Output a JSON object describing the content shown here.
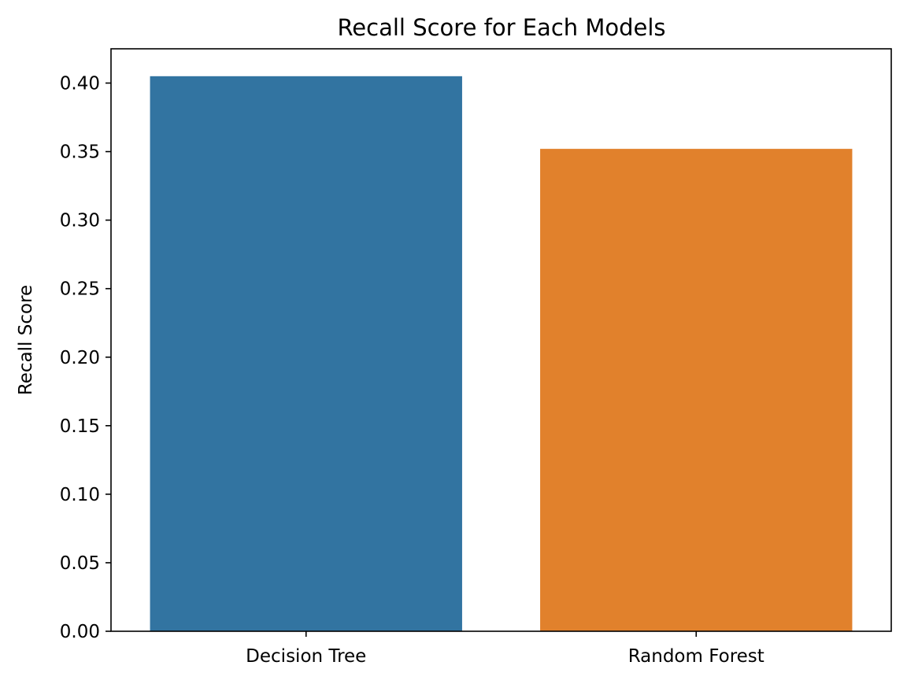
{
  "chart_data": {
    "type": "bar",
    "title": "Recall Score for Each Models",
    "xlabel": "",
    "ylabel": "Recall Score",
    "categories": [
      "Decision Tree",
      "Random Forest"
    ],
    "values": [
      0.405,
      0.352
    ],
    "colors": [
      "#3274a1",
      "#e1812c"
    ],
    "ylim": [
      0,
      0.425
    ],
    "yticks": [
      0.0,
      0.05,
      0.1,
      0.15,
      0.2,
      0.25,
      0.3,
      0.35,
      0.4
    ],
    "ytick_labels": [
      "0.00",
      "0.05",
      "0.10",
      "0.15",
      "0.20",
      "0.25",
      "0.30",
      "0.35",
      "0.40"
    ],
    "grid": false,
    "legend": "none"
  }
}
